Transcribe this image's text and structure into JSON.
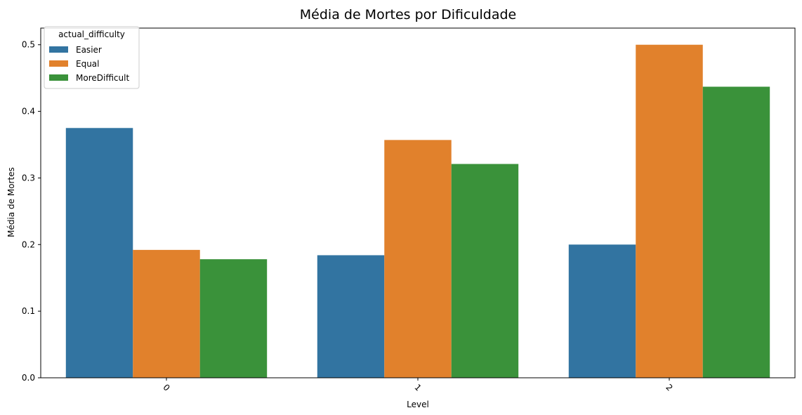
{
  "chart_data": {
    "type": "bar",
    "title": "Média de Mortes por Dificuldade",
    "xlabel": "Level",
    "ylabel": "Média de Mortes",
    "categories": [
      "0",
      "1",
      "2"
    ],
    "series": [
      {
        "name": "Easier",
        "values": [
          0.375,
          0.184,
          0.2
        ],
        "color": "#3274a1"
      },
      {
        "name": "Equal",
        "values": [
          0.192,
          0.357,
          0.5
        ],
        "color": "#e1812c"
      },
      {
        "name": "MoreDifficult",
        "values": [
          0.178,
          0.321,
          0.437
        ],
        "color": "#3a923a"
      }
    ],
    "ylim": [
      0,
      0.525
    ],
    "yticks": [
      "0.0",
      "0.1",
      "0.2",
      "0.3",
      "0.4",
      "0.5"
    ],
    "xtick_rotation": 45,
    "grid": false,
    "legend": {
      "title": "actual_difficulty",
      "placement": "upper-left"
    }
  }
}
